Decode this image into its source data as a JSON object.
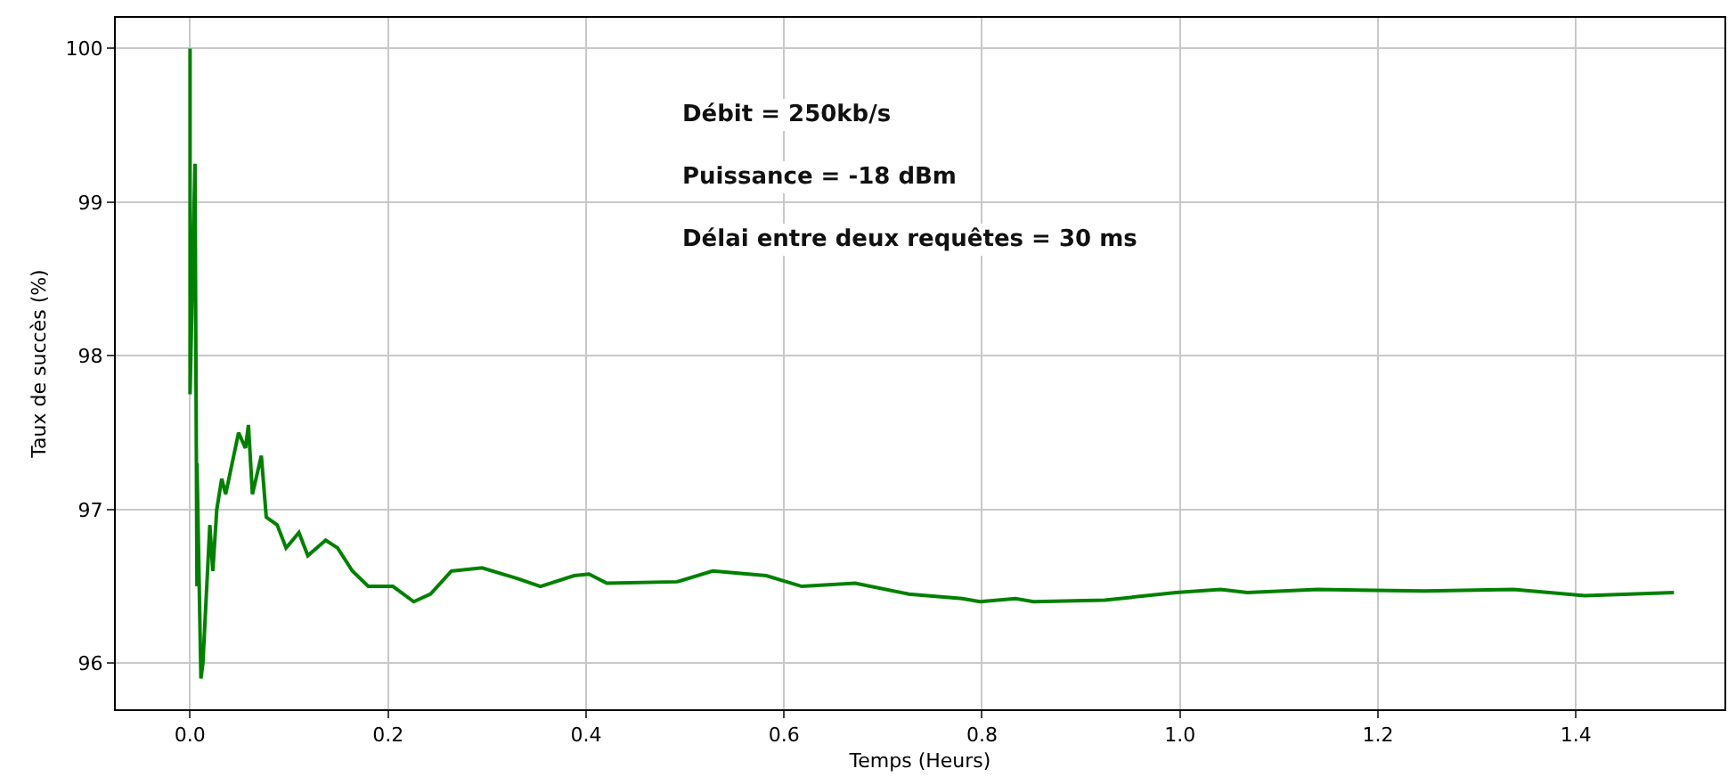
{
  "chart_data": {
    "type": "line",
    "xlabel": "Temps (Heurs)",
    "ylabel": "Taux de succès (%)",
    "annotations": [
      "Débit = 250kb/s",
      "Puissance = -18 dBm",
      "Délai entre deux requêtes = 30 ms"
    ],
    "x": [
      0,
      0,
      0.005,
      0.007,
      0.007,
      0.011,
      0.013,
      0.02,
      0.023,
      0.027,
      0.032,
      0.036,
      0.049,
      0.056,
      0.059,
      0.063,
      0.072,
      0.077,
      0.088,
      0.097,
      0.11,
      0.119,
      0.137,
      0.149,
      0.164,
      0.18,
      0.205,
      0.226,
      0.243,
      0.264,
      0.295,
      0.331,
      0.354,
      0.388,
      0.403,
      0.421,
      0.492,
      0.528,
      0.582,
      0.618,
      0.672,
      0.726,
      0.78,
      0.798,
      0.834,
      0.852,
      0.924,
      0.996,
      1.041,
      1.068,
      1.139,
      1.247,
      1.337,
      1.409,
      1.499
    ],
    "series": [
      {
        "color": "#008000",
        "values": [
          100,
          97.75,
          99.25,
          96.5,
          97.3,
          95.9,
          96.0,
          96.9,
          96.6,
          97.0,
          97.2,
          97.1,
          97.5,
          97.4,
          97.55,
          97.1,
          97.35,
          96.95,
          96.9,
          96.75,
          96.85,
          96.7,
          96.8,
          96.75,
          96.6,
          96.5,
          96.5,
          96.4,
          96.45,
          96.6,
          96.62,
          96.55,
          96.5,
          96.57,
          96.58,
          96.52,
          96.53,
          96.6,
          96.57,
          96.5,
          96.52,
          96.45,
          96.42,
          96.4,
          96.42,
          96.4,
          96.41,
          96.46,
          96.48,
          96.46,
          96.48,
          96.47,
          96.48,
          96.44,
          96.46
        ]
      }
    ],
    "xlim": [
      -0.075,
      1.55
    ],
    "xticks": [
      {
        "value": 0,
        "label": "0.0"
      },
      0.2,
      0.4,
      0.6,
      0.8,
      {
        "value": 1,
        "label": "1.0"
      },
      1.2,
      1.4
    ],
    "ylim": [
      95.7,
      100.2
    ],
    "yticks": [
      96,
      97,
      98,
      99,
      100
    ],
    "grid": true,
    "marker": "none",
    "line_style": "solid"
  }
}
